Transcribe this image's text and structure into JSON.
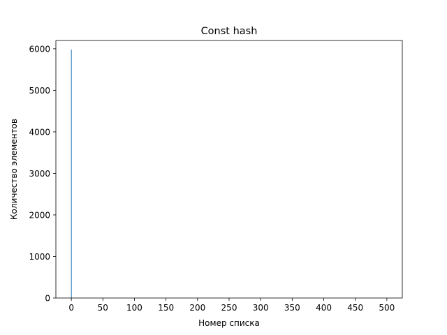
{
  "chart_data": {
    "type": "bar",
    "title": "Const hash",
    "xlabel": "Номер списка",
    "ylabel": "Количество элементов",
    "xlim": [
      -24.5,
      524.5
    ],
    "ylim": [
      0,
      6200
    ],
    "xticks": [
      0,
      50,
      100,
      150,
      200,
      250,
      300,
      350,
      400,
      450,
      500
    ],
    "yticks": [
      0,
      1000,
      2000,
      3000,
      4000,
      5000,
      6000
    ],
    "grid": false,
    "series": [
      {
        "color": "#1f77b4",
        "bar_width": 1,
        "x": [
          0
        ],
        "values": [
          5980
        ]
      }
    ]
  }
}
